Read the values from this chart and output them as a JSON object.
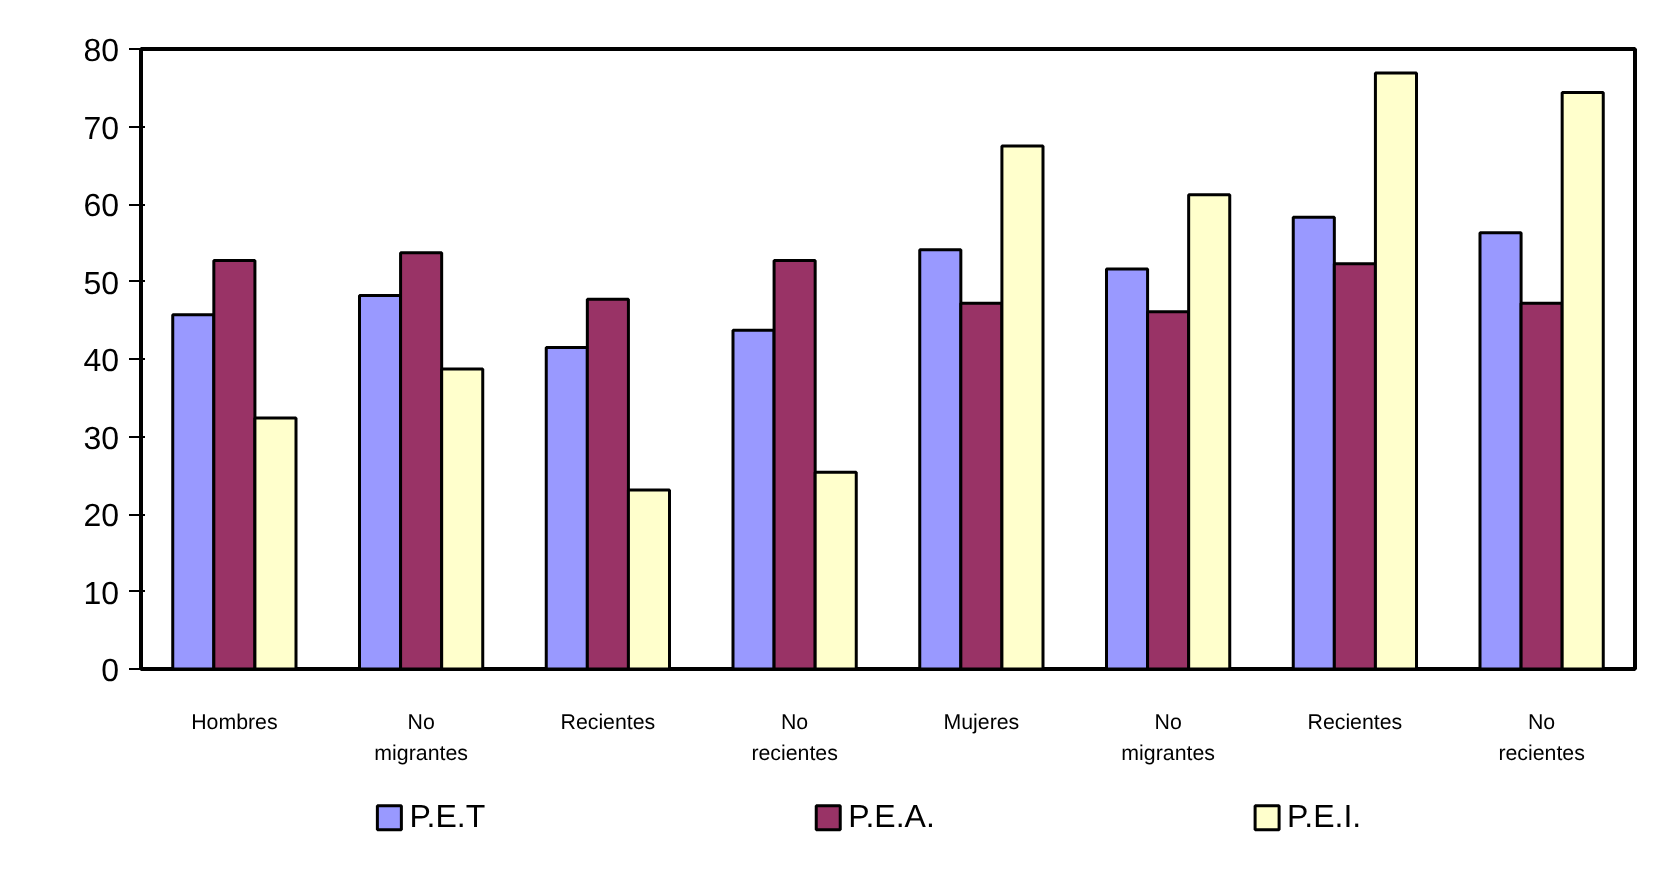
{
  "chart_data": {
    "type": "bar",
    "categories": [
      "Hombres",
      "No migrantes",
      "Recientes",
      "No recientes",
      "Mujeres",
      "No migrantes",
      "Recientes",
      "No recientes"
    ],
    "series": [
      {
        "name": "P.E.T",
        "color": "#9999ff",
        "values": [
          45.7,
          48.2,
          41.5,
          43.7,
          54.1,
          51.6,
          58.3,
          56.3
        ]
      },
      {
        "name": "P.E.A.",
        "color": "#993366",
        "values": [
          52.7,
          53.7,
          47.7,
          52.7,
          47.2,
          46.1,
          52.3,
          47.2
        ]
      },
      {
        "name": "P.E.I.",
        "color": "#ffffcc",
        "values": [
          32.4,
          38.7,
          23.1,
          25.4,
          67.5,
          61.2,
          76.9,
          74.4
        ]
      }
    ],
    "ylim": [
      0,
      80
    ],
    "yticks": [
      0,
      10,
      20,
      30,
      40,
      50,
      60,
      70,
      80
    ],
    "grid": false,
    "legend": "bottom"
  }
}
